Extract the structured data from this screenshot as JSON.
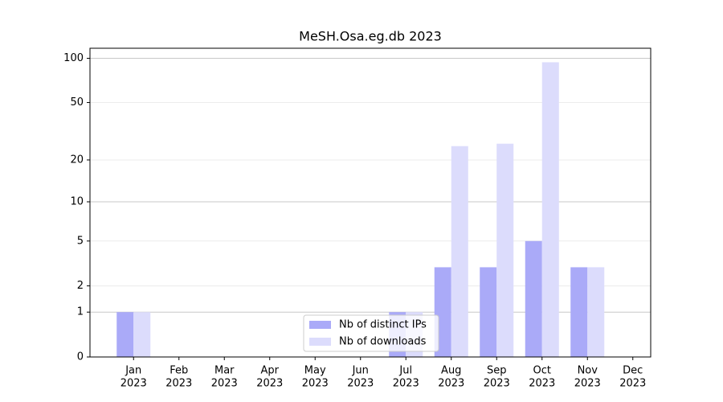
{
  "chart_data": {
    "type": "bar",
    "title": "MeSH.Osa.eg.db 2023",
    "scale": "log1p",
    "categories": [
      [
        "Jan",
        "2023"
      ],
      [
        "Feb",
        "2023"
      ],
      [
        "Mar",
        "2023"
      ],
      [
        "Apr",
        "2023"
      ],
      [
        "May",
        "2023"
      ],
      [
        "Jun",
        "2023"
      ],
      [
        "Jul",
        "2023"
      ],
      [
        "Aug",
        "2023"
      ],
      [
        "Sep",
        "2023"
      ],
      [
        "Oct",
        "2023"
      ],
      [
        "Nov",
        "2023"
      ],
      [
        "Dec",
        "2023"
      ]
    ],
    "series": [
      {
        "name": "Nb of distinct IPs",
        "color": "#aaaaf8",
        "values": [
          1,
          0,
          0,
          0,
          0,
          0,
          1,
          3,
          3,
          5,
          3,
          0
        ]
      },
      {
        "name": "Nb of downloads",
        "color": "#dcdcfc",
        "values": [
          1,
          0,
          0,
          0,
          0,
          0,
          1,
          25,
          26,
          94,
          3,
          0
        ]
      }
    ],
    "ylim": [
      0,
      117
    ],
    "yticks": [
      0,
      1,
      2,
      5,
      10,
      20,
      50,
      100
    ],
    "grid": true,
    "legend": "lower center"
  }
}
